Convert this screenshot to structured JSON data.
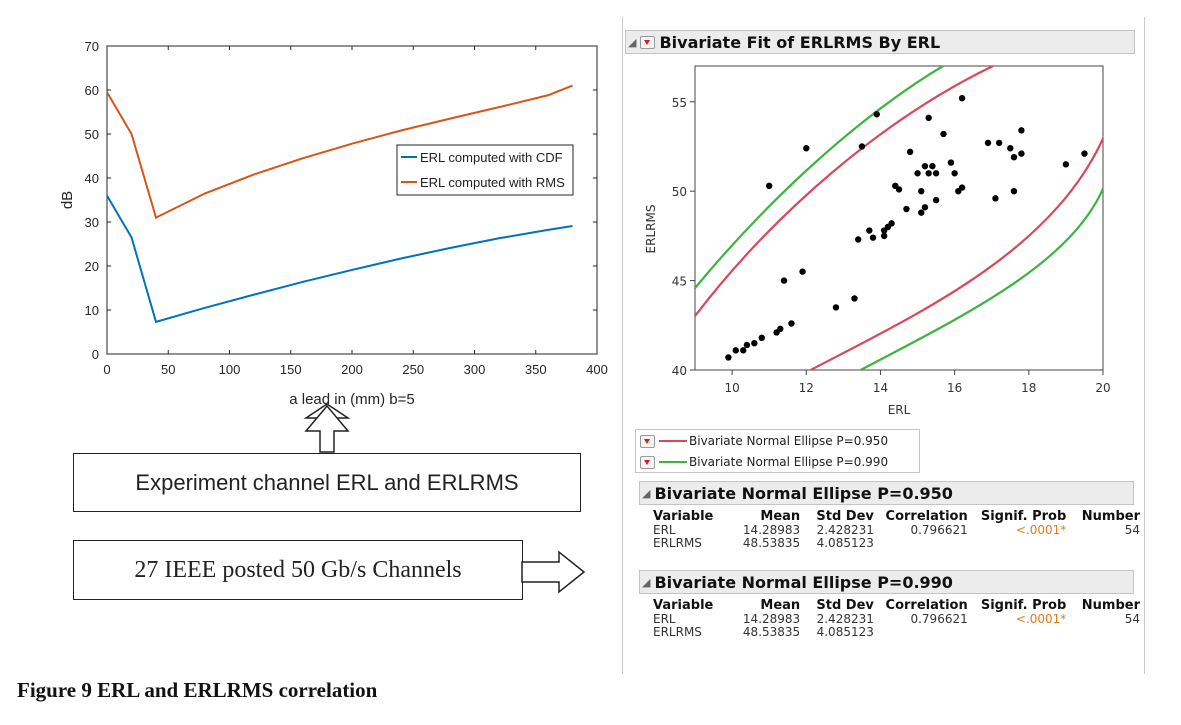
{
  "chart_data": [
    {
      "type": "line",
      "title": "",
      "xlabel": "a lead in (mm) b=5",
      "ylabel": "dB",
      "xlim": [
        0,
        400
      ],
      "ylim": [
        0,
        70
      ],
      "xticks": [
        0,
        50,
        100,
        150,
        200,
        250,
        300,
        350,
        400
      ],
      "yticks": [
        0,
        10,
        20,
        30,
        40,
        50,
        60,
        70
      ],
      "grid": false,
      "legend_position": "center-right",
      "series": [
        {
          "name": "ERL computed with CDF",
          "color": "#0072bd",
          "x": [
            0,
            20,
            40,
            80,
            120,
            160,
            200,
            240,
            280,
            320,
            360,
            380
          ],
          "y": [
            36,
            26.5,
            7.3,
            10.5,
            13.5,
            16.4,
            19.1,
            21.7,
            24.1,
            26.3,
            28.2,
            29.1
          ]
        },
        {
          "name": "ERL computed with RMS",
          "color": "#d95319",
          "x": [
            0,
            20,
            40,
            80,
            120,
            160,
            200,
            240,
            280,
            320,
            360,
            380
          ],
          "y": [
            59.5,
            50,
            31,
            36.5,
            40.8,
            44.5,
            47.8,
            50.8,
            53.5,
            56.1,
            58.8,
            61
          ]
        }
      ]
    },
    {
      "type": "scatter",
      "title": "Bivariate Fit of ERLRMS By ERL",
      "xlabel": "ERL",
      "ylabel": "ERLRMS",
      "xlim": [
        9,
        20
      ],
      "ylim": [
        40,
        57
      ],
      "xticks": [
        10,
        12,
        14,
        16,
        18,
        20
      ],
      "yticks": [
        40,
        45,
        50,
        55
      ],
      "points": [
        [
          9.9,
          40.7
        ],
        [
          10.1,
          41.1
        ],
        [
          10.3,
          41.1
        ],
        [
          10.4,
          41.4
        ],
        [
          10.6,
          41.5
        ],
        [
          10.8,
          41.8
        ],
        [
          11.0,
          50.3
        ],
        [
          11.2,
          42.1
        ],
        [
          11.3,
          42.3
        ],
        [
          11.4,
          45.0
        ],
        [
          11.6,
          42.6
        ],
        [
          11.9,
          45.5
        ],
        [
          12.0,
          52.4
        ],
        [
          12.8,
          43.5
        ],
        [
          13.3,
          44.0
        ],
        [
          13.4,
          47.3
        ],
        [
          13.5,
          52.5
        ],
        [
          13.7,
          47.8
        ],
        [
          13.8,
          47.4
        ],
        [
          13.9,
          54.3
        ],
        [
          14.1,
          47.8
        ],
        [
          14.1,
          47.5
        ],
        [
          14.2,
          48.0
        ],
        [
          14.3,
          48.2
        ],
        [
          14.4,
          50.3
        ],
        [
          14.5,
          50.1
        ],
        [
          14.7,
          49.0
        ],
        [
          14.8,
          52.2
        ],
        [
          15.0,
          51.0
        ],
        [
          15.1,
          50.0
        ],
        [
          15.1,
          48.8
        ],
        [
          15.2,
          49.1
        ],
        [
          15.2,
          51.4
        ],
        [
          15.3,
          54.1
        ],
        [
          15.3,
          51.0
        ],
        [
          15.4,
          51.4
        ],
        [
          15.5,
          49.5
        ],
        [
          15.5,
          51.0
        ],
        [
          15.7,
          53.2
        ],
        [
          15.9,
          51.6
        ],
        [
          16.0,
          51.0
        ],
        [
          16.1,
          50.0
        ],
        [
          16.2,
          50.2
        ],
        [
          16.2,
          55.2
        ],
        [
          16.9,
          52.7
        ],
        [
          17.1,
          49.6
        ],
        [
          17.2,
          52.7
        ],
        [
          17.5,
          52.4
        ],
        [
          17.6,
          51.9
        ],
        [
          17.6,
          50.0
        ],
        [
          17.8,
          52.1
        ],
        [
          17.8,
          53.4
        ],
        [
          19.0,
          51.5
        ],
        [
          19.5,
          52.1
        ]
      ]
    }
  ],
  "left_chart": {
    "legend": [
      "ERL computed with CDF",
      "ERL computed with RMS"
    ]
  },
  "boxes": {
    "experiment": "Experiment channel ERL and ERLRMS",
    "ieee": "27 IEEE posted 50 Gb/s Channels"
  },
  "caption": "Figure 9 ERL and ERLRMS correlation",
  "jmp": {
    "header_title": "Bivariate Fit of ERLRMS By ERL",
    "legend_items": [
      {
        "label": "Bivariate Normal Ellipse P=0.950",
        "color": "#d9485a"
      },
      {
        "label": "Bivariate Normal Ellipse P=0.990",
        "color": "#3db340"
      }
    ],
    "columns": [
      "Variable",
      "Mean",
      "Std Dev",
      "Correlation",
      "Signif. Prob",
      "Number"
    ],
    "sections": [
      {
        "title": "Bivariate Normal Ellipse P=0.950",
        "rows": [
          [
            "ERL",
            "14.28983",
            "2.428231",
            "0.796621",
            "<.0001*",
            "54"
          ],
          [
            "ERLRMS",
            "48.53835",
            "4.085123",
            "",
            "",
            ""
          ]
        ]
      },
      {
        "title": "Bivariate Normal Ellipse P=0.990",
        "rows": [
          [
            "ERL",
            "14.28983",
            "2.428231",
            "0.796621",
            "<.0001*",
            "54"
          ],
          [
            "ERLRMS",
            "48.53835",
            "4.085123",
            "",
            "",
            ""
          ]
        ]
      }
    ]
  }
}
